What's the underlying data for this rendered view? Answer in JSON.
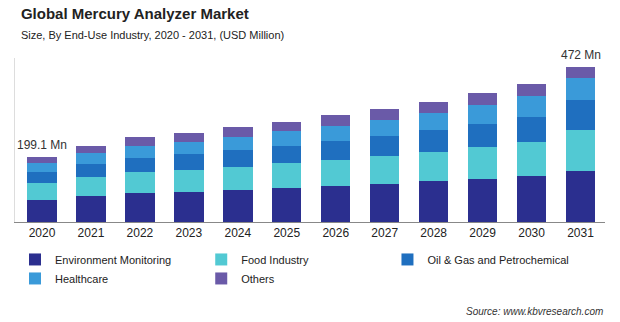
{
  "chart_data": {
    "type": "bar",
    "stacked": true,
    "title": "Global Mercury Analyzer Market",
    "subtitle": "Size, By End-Use Industry, 2020 - 2031, (USD Million)",
    "categories": [
      "2020",
      "2021",
      "2022",
      "2023",
      "2024",
      "2025",
      "2026",
      "2027",
      "2028",
      "2029",
      "2030",
      "2031"
    ],
    "series": [
      {
        "name": "Environment Monitoring",
        "color": "#2b2f8f",
        "values": [
          68,
          80,
          88,
          92,
          98,
          104,
          110,
          117,
          124,
          132,
          141,
          157
        ]
      },
      {
        "name": "Food Industry",
        "color": "#52c9d3",
        "values": [
          50,
          57,
          64,
          67,
          71,
          75,
          80,
          85,
          90,
          97,
          104,
          123
        ]
      },
      {
        "name": "Oil & Gas and Petrochemical",
        "color": "#1f6fbf",
        "values": [
          34,
          40,
          44,
          47,
          50,
          53,
          57,
          61,
          65,
          70,
          76,
          92
        ]
      },
      {
        "name": "Healthcare",
        "color": "#3a9ad9",
        "values": [
          28,
          33,
          37,
          39,
          41,
          44,
          46,
          49,
          53,
          57,
          62,
          67
        ]
      },
      {
        "name": "Others",
        "color": "#6a5aa8",
        "values": [
          19.1,
          22,
          25,
          27,
          29,
          30,
          32,
          33,
          35,
          37,
          38,
          33
        ]
      }
    ],
    "ylim": [
      0,
      500
    ],
    "yticks": [],
    "tick_labels": "x",
    "grid": false,
    "legend": "bottom",
    "annotations": [
      {
        "text": "199.1 Mn",
        "category": "2020",
        "value": 199.1
      },
      {
        "text": "472 Mn",
        "category": "2031",
        "value": 472
      },
      {
        "text": "Source: www.kbvresearch.com"
      }
    ]
  }
}
